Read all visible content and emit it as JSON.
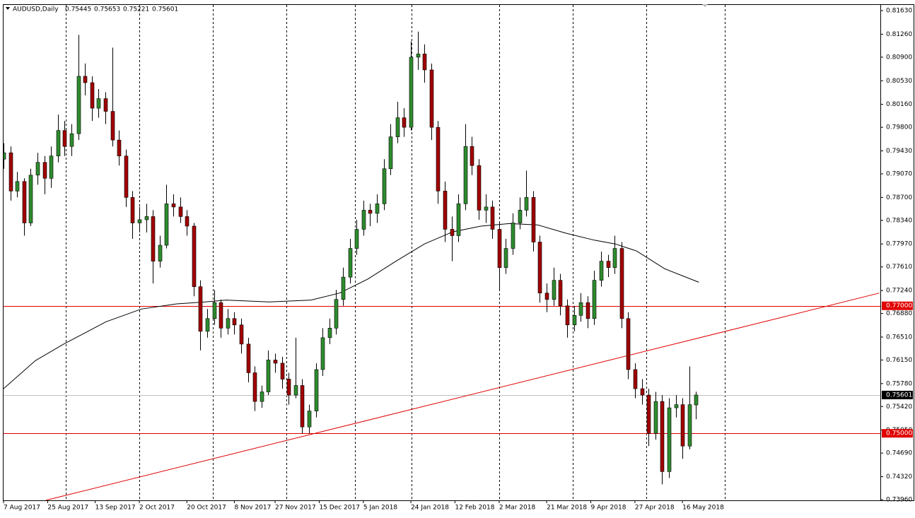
{
  "chart_data": {
    "type": "candlestick",
    "symbol": "AUDUSD,Daily",
    "header_ohlc": [
      0.75445,
      0.75653,
      0.75221,
      0.75601
    ],
    "xlim": [
      0,
      258.3
    ],
    "ylim": [
      0.73949,
      0.81719
    ],
    "yticks": [
      {
        "value": 0.8163,
        "label": "0.81630"
      },
      {
        "value": 0.8126,
        "label": "0.81260"
      },
      {
        "value": 0.809,
        "label": "0.80900"
      },
      {
        "value": 0.8053,
        "label": "0.80530"
      },
      {
        "value": 0.8016,
        "label": "0.80160"
      },
      {
        "value": 0.798,
        "label": "0.79800"
      },
      {
        "value": 0.7943,
        "label": "0.79430"
      },
      {
        "value": 0.7907,
        "label": "0.79070"
      },
      {
        "value": 0.787,
        "label": "0.78700"
      },
      {
        "value": 0.7834,
        "label": "0.78340"
      },
      {
        "value": 0.7797,
        "label": "0.77970"
      },
      {
        "value": 0.7761,
        "label": "0.77610"
      },
      {
        "value": 0.7724,
        "label": "0.77240"
      },
      {
        "value": 0.7688,
        "label": "0.76880"
      },
      {
        "value": 0.7651,
        "label": "0.76510"
      },
      {
        "value": 0.7615,
        "label": "0.76150"
      },
      {
        "value": 0.7578,
        "label": "0.75780"
      },
      {
        "value": 0.7542,
        "label": "0.75420"
      },
      {
        "value": 0.7505,
        "label": "0.75050"
      },
      {
        "value": 0.7469,
        "label": "0.74690"
      },
      {
        "value": 0.7432,
        "label": "0.74320"
      },
      {
        "value": 0.7396,
        "label": "0.73960"
      }
    ],
    "xticks": [
      {
        "value": 0,
        "label": "7 Aug 2017"
      },
      {
        "value": 13,
        "label": "25 Aug 2017"
      },
      {
        "value": 27,
        "label": "13 Sep 2017"
      },
      {
        "value": 40,
        "label": "2 Oct 2017"
      },
      {
        "value": 54,
        "label": "20 Oct 2017"
      },
      {
        "value": 68,
        "label": "8 Nov 2017"
      },
      {
        "value": 80,
        "label": "27 Nov 2017"
      },
      {
        "value": 93,
        "label": "15 Dec 2017"
      },
      {
        "value": 106,
        "label": "5 Jan 2018"
      },
      {
        "value": 120,
        "label": "24 Jan 2018"
      },
      {
        "value": 133,
        "label": "12 Feb 2018"
      },
      {
        "value": 146,
        "label": "2 Mar 2018"
      },
      {
        "value": 160,
        "label": "21 Mar 2018"
      },
      {
        "value": 173,
        "label": "9 Apr 2018"
      },
      {
        "value": 186,
        "label": "27 Apr 2018"
      },
      {
        "value": 200,
        "label": "16 May 2018"
      }
    ],
    "period_separators": [
      18.3,
      40,
      61.7,
      83.3,
      103.5,
      120.2,
      146,
      167.7,
      189.4,
      212.5
    ],
    "bull_color": "#2e8b2e",
    "bear_color": "#a00000",
    "wick_color": "#000000",
    "x": [
      0,
      2,
      4,
      6,
      8,
      10,
      12,
      14,
      16,
      18,
      20,
      22,
      24,
      26,
      28,
      30,
      32,
      34,
      36,
      38,
      40,
      42,
      44,
      46,
      48,
      50,
      52,
      54,
      56,
      58,
      60,
      62,
      64,
      66,
      68,
      70,
      72,
      74,
      76,
      78,
      80,
      82,
      84,
      86,
      88,
      90,
      92,
      94,
      96,
      98,
      100,
      102,
      104,
      106,
      108,
      110,
      112,
      114,
      116,
      118,
      120,
      122,
      124,
      126,
      128,
      130,
      132,
      134,
      136,
      138,
      140,
      142,
      144,
      146,
      148,
      150,
      152,
      154,
      156,
      158,
      160,
      162,
      164,
      166,
      168,
      170,
      172,
      174,
      176,
      178,
      180,
      182,
      184,
      186,
      188,
      190,
      192,
      194,
      196,
      198,
      200,
      202,
      204
    ],
    "ohlc": [
      [
        0.793,
        0.7955,
        0.7915,
        0.794
      ],
      [
        0.794,
        0.795,
        0.7865,
        0.788
      ],
      [
        0.788,
        0.791,
        0.787,
        0.7895
      ],
      [
        0.7895,
        0.79,
        0.781,
        0.783
      ],
      [
        0.783,
        0.7915,
        0.7825,
        0.7905
      ],
      [
        0.7905,
        0.794,
        0.789,
        0.7925
      ],
      [
        0.7925,
        0.7935,
        0.7875,
        0.79
      ],
      [
        0.79,
        0.795,
        0.7885,
        0.7935
      ],
      [
        0.7935,
        0.8,
        0.7925,
        0.7975
      ],
      [
        0.7975,
        0.799,
        0.7935,
        0.795
      ],
      [
        0.795,
        0.7985,
        0.7935,
        0.797
      ],
      [
        0.797,
        0.8125,
        0.796,
        0.806
      ],
      [
        0.806,
        0.808,
        0.803,
        0.805
      ],
      [
        0.805,
        0.806,
        0.799,
        0.801
      ],
      [
        0.801,
        0.804,
        0.7995,
        0.8025
      ],
      [
        0.8025,
        0.8035,
        0.7985,
        0.8005
      ],
      [
        0.8005,
        0.8105,
        0.795,
        0.796
      ],
      [
        0.796,
        0.7975,
        0.792,
        0.7935
      ],
      [
        0.7935,
        0.7945,
        0.7855,
        0.787
      ],
      [
        0.787,
        0.788,
        0.7805,
        0.783
      ],
      [
        0.783,
        0.7855,
        0.7815,
        0.7835
      ],
      [
        0.7835,
        0.786,
        0.7815,
        0.784
      ],
      [
        0.784,
        0.785,
        0.7735,
        0.777
      ],
      [
        0.777,
        0.781,
        0.776,
        0.7795
      ],
      [
        0.7795,
        0.789,
        0.779,
        0.786
      ],
      [
        0.786,
        0.7875,
        0.784,
        0.7855
      ],
      [
        0.7855,
        0.787,
        0.783,
        0.784
      ],
      [
        0.784,
        0.785,
        0.781,
        0.7825
      ],
      [
        0.7825,
        0.783,
        0.7715,
        0.773
      ],
      [
        0.773,
        0.774,
        0.763,
        0.766
      ],
      [
        0.766,
        0.7695,
        0.765,
        0.768
      ],
      [
        0.768,
        0.7725,
        0.767,
        0.7705
      ],
      [
        0.7705,
        0.771,
        0.765,
        0.7665
      ],
      [
        0.7665,
        0.7695,
        0.7655,
        0.768
      ],
      [
        0.768,
        0.769,
        0.7655,
        0.767
      ],
      [
        0.767,
        0.768,
        0.7625,
        0.764
      ],
      [
        0.764,
        0.765,
        0.758,
        0.7595
      ],
      [
        0.7595,
        0.7605,
        0.7535,
        0.755
      ],
      [
        0.755,
        0.7575,
        0.754,
        0.7565
      ],
      [
        0.7565,
        0.763,
        0.756,
        0.7615
      ],
      [
        0.7615,
        0.7625,
        0.7595,
        0.761
      ],
      [
        0.761,
        0.762,
        0.757,
        0.7585
      ],
      [
        0.7585,
        0.7595,
        0.7545,
        0.756
      ],
      [
        0.756,
        0.765,
        0.7555,
        0.7575
      ],
      [
        0.7575,
        0.7585,
        0.75,
        0.751
      ],
      [
        0.751,
        0.7545,
        0.75,
        0.7535
      ],
      [
        0.7535,
        0.761,
        0.7525,
        0.76
      ],
      [
        0.76,
        0.7665,
        0.759,
        0.765
      ],
      [
        0.765,
        0.768,
        0.764,
        0.7665
      ],
      [
        0.7665,
        0.7725,
        0.7655,
        0.771
      ],
      [
        0.771,
        0.776,
        0.77,
        0.7745
      ],
      [
        0.7745,
        0.7805,
        0.7735,
        0.779
      ],
      [
        0.779,
        0.7835,
        0.778,
        0.782
      ],
      [
        0.782,
        0.7865,
        0.781,
        0.785
      ],
      [
        0.785,
        0.786,
        0.7825,
        0.7845
      ],
      [
        0.7845,
        0.7875,
        0.783,
        0.786
      ],
      [
        0.786,
        0.793,
        0.785,
        0.7915
      ],
      [
        0.7915,
        0.7985,
        0.7905,
        0.7965
      ],
      [
        0.7965,
        0.802,
        0.7955,
        0.7995
      ],
      [
        0.7995,
        0.801,
        0.7965,
        0.798
      ],
      [
        0.798,
        0.8115,
        0.7975,
        0.809
      ],
      [
        0.809,
        0.813,
        0.807,
        0.8095
      ],
      [
        0.8095,
        0.811,
        0.805,
        0.807
      ],
      [
        0.807,
        0.808,
        0.796,
        0.798
      ],
      [
        0.798,
        0.799,
        0.786,
        0.788
      ],
      [
        0.788,
        0.7895,
        0.78,
        0.782
      ],
      [
        0.782,
        0.784,
        0.777,
        0.781
      ],
      [
        0.781,
        0.7875,
        0.78,
        0.786
      ],
      [
        0.786,
        0.7985,
        0.785,
        0.795
      ],
      [
        0.795,
        0.7965,
        0.7905,
        0.792
      ],
      [
        0.792,
        0.793,
        0.7835,
        0.785
      ],
      [
        0.785,
        0.7875,
        0.783,
        0.7855
      ],
      [
        0.7855,
        0.7865,
        0.7805,
        0.782
      ],
      [
        0.782,
        0.783,
        0.7725,
        0.776
      ],
      [
        0.776,
        0.7805,
        0.775,
        0.779
      ],
      [
        0.779,
        0.7845,
        0.778,
        0.783
      ],
      [
        0.783,
        0.787,
        0.782,
        0.785
      ],
      [
        0.785,
        0.7912,
        0.784,
        0.787
      ],
      [
        0.787,
        0.788,
        0.7785,
        0.78
      ],
      [
        0.78,
        0.781,
        0.7705,
        0.772
      ],
      [
        0.772,
        0.7735,
        0.769,
        0.771
      ],
      [
        0.771,
        0.776,
        0.77,
        0.774
      ],
      [
        0.774,
        0.775,
        0.7685,
        0.77
      ],
      [
        0.77,
        0.771,
        0.765,
        0.767
      ],
      [
        0.767,
        0.77,
        0.766,
        0.7685
      ],
      [
        0.7685,
        0.772,
        0.7675,
        0.7705
      ],
      [
        0.7705,
        0.7715,
        0.7665,
        0.768
      ],
      [
        0.768,
        0.7755,
        0.767,
        0.774
      ],
      [
        0.774,
        0.7785,
        0.773,
        0.777
      ],
      [
        0.777,
        0.778,
        0.7745,
        0.776
      ],
      [
        0.776,
        0.781,
        0.775,
        0.779
      ],
      [
        0.779,
        0.78,
        0.7665,
        0.768
      ],
      [
        0.768,
        0.769,
        0.7585,
        0.76
      ],
      [
        0.76,
        0.761,
        0.7555,
        0.757
      ],
      [
        0.757,
        0.7585,
        0.7545,
        0.756
      ],
      [
        0.756,
        0.757,
        0.748,
        0.75
      ],
      [
        0.75,
        0.7565,
        0.749,
        0.755
      ],
      [
        0.755,
        0.756,
        0.742,
        0.744
      ],
      [
        0.744,
        0.7555,
        0.743,
        0.754
      ],
      [
        0.754,
        0.756,
        0.7525,
        0.7545
      ],
      [
        0.7545,
        0.7555,
        0.746,
        0.748
      ],
      [
        0.748,
        0.7605,
        0.7475,
        0.7545
      ],
      [
        0.75445,
        0.75653,
        0.75221,
        0.75601
      ]
    ],
    "moving_average": {
      "color": "#000000",
      "x": [
        0,
        9.4,
        17.7,
        30.2,
        40.6,
        51,
        59.4,
        65.6,
        78.1,
        90.6,
        99,
        107.3,
        115.6,
        124,
        132.3,
        140.6,
        149,
        157.3,
        165.6,
        174,
        180.2,
        186.5,
        194.8,
        204.8
      ],
      "values": [
        0.757,
        0.7614,
        0.764,
        0.7675,
        0.7695,
        0.7703,
        0.7706,
        0.7709,
        0.7706,
        0.7709,
        0.772,
        0.7742,
        0.777,
        0.7797,
        0.7816,
        0.7825,
        0.7829,
        0.7827,
        0.7814,
        0.7803,
        0.7797,
        0.7786,
        0.7758,
        0.7737
      ]
    },
    "horizontal_lines": [
      {
        "value": 0.77,
        "label": "0.77000"
      },
      {
        "value": 0.75,
        "label": "0.75000"
      }
    ],
    "horizontal_line_color": "#e00000",
    "trend_line": {
      "x": [
        12.5,
        258
      ],
      "values": [
        0.7395,
        0.772
      ],
      "color": "#e00000"
    },
    "current_price": 0.75601
  }
}
